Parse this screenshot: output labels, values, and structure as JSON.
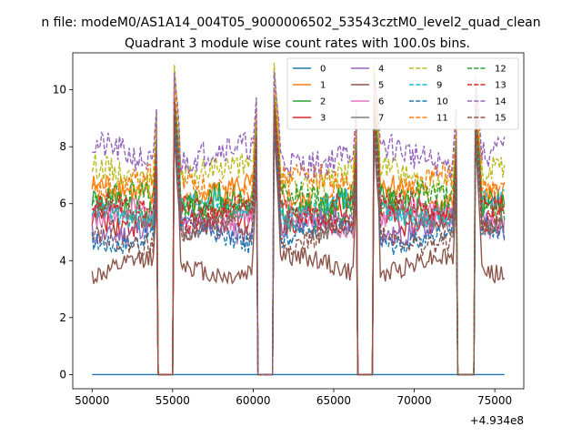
{
  "chart_data": {
    "type": "line",
    "suptitle": "n file: modeM0/AS1A14_004T05_9000006502_53543cztM0_level2_quad_clean",
    "title": "Quadrant 3 module wise count rates with 100.0s bins.",
    "xlabel": "",
    "ylabel": "",
    "x_offset_label": "+4.934e8",
    "xlim": [
      48800,
      76800
    ],
    "ylim": [
      -0.5,
      11.3
    ],
    "x_ticks": [
      50000,
      55000,
      60000,
      65000,
      70000,
      75000
    ],
    "x_tick_labels": [
      "50000",
      "55000",
      "60000",
      "65000",
      "70000",
      "75000"
    ],
    "y_ticks": [
      0,
      2,
      4,
      6,
      8,
      10
    ],
    "y_tick_labels": [
      "0",
      "2",
      "4",
      "6",
      "8",
      "10"
    ],
    "x_start": 50000,
    "x_end": 75600,
    "gaps": [
      [
        54050,
        55100
      ],
      [
        60200,
        61300
      ],
      [
        66450,
        67500
      ],
      [
        72650,
        73750
      ]
    ],
    "legend_location": "upper right",
    "series": [
      {
        "name": "0",
        "color": "#1f77b4",
        "dash": "solid",
        "level": 0.0,
        "noise": 0.0,
        "peak": 0.0
      },
      {
        "name": "1",
        "color": "#ff7f0e",
        "dash": "solid",
        "level": 6.3,
        "noise": 0.45,
        "peak": 9.9
      },
      {
        "name": "2",
        "color": "#2ca02c",
        "dash": "solid",
        "level": 5.9,
        "noise": 0.55,
        "peak": 9.6
      },
      {
        "name": "3",
        "color": "#d62728",
        "dash": "solid",
        "level": 5.6,
        "noise": 0.45,
        "peak": 9.4
      },
      {
        "name": "4",
        "color": "#9467bd",
        "dash": "solid",
        "level": 5.2,
        "noise": 0.4,
        "peak": 9.1
      },
      {
        "name": "5",
        "color": "#8c564b",
        "dash": "solid",
        "level": 3.8,
        "noise": 0.35,
        "peak": 8.6
      },
      {
        "name": "6",
        "color": "#e377c2",
        "dash": "solid",
        "level": 5.5,
        "noise": 0.4,
        "peak": 9.3
      },
      {
        "name": "7",
        "color": "#7f7f7f",
        "dash": "solid",
        "level": 5.4,
        "noise": 0.35,
        "peak": 9.2
      },
      {
        "name": "8",
        "color": "#bcbd22",
        "dash": "dashed",
        "level": 7.0,
        "noise": 0.45,
        "peak": 10.9
      },
      {
        "name": "9",
        "color": "#17becf",
        "dash": "dashed",
        "level": 5.8,
        "noise": 0.4,
        "peak": 9.5
      },
      {
        "name": "10",
        "color": "#1f77b4",
        "dash": "dashed",
        "level": 4.9,
        "noise": 0.35,
        "peak": 8.9
      },
      {
        "name": "11",
        "color": "#ff7f0e",
        "dash": "dashed",
        "level": 6.7,
        "noise": 0.45,
        "peak": 10.3
      },
      {
        "name": "12",
        "color": "#2ca02c",
        "dash": "dashed",
        "level": 6.1,
        "noise": 0.45,
        "peak": 9.8
      },
      {
        "name": "13",
        "color": "#d62728",
        "dash": "dashed",
        "level": 5.7,
        "noise": 0.4,
        "peak": 9.5
      },
      {
        "name": "14",
        "color": "#9467bd",
        "dash": "dashed",
        "level": 7.7,
        "noise": 0.5,
        "peak": 10.6
      },
      {
        "name": "15",
        "color": "#8c564b",
        "dash": "dashed",
        "level": 4.9,
        "noise": 0.4,
        "peak": 9.2
      }
    ]
  }
}
